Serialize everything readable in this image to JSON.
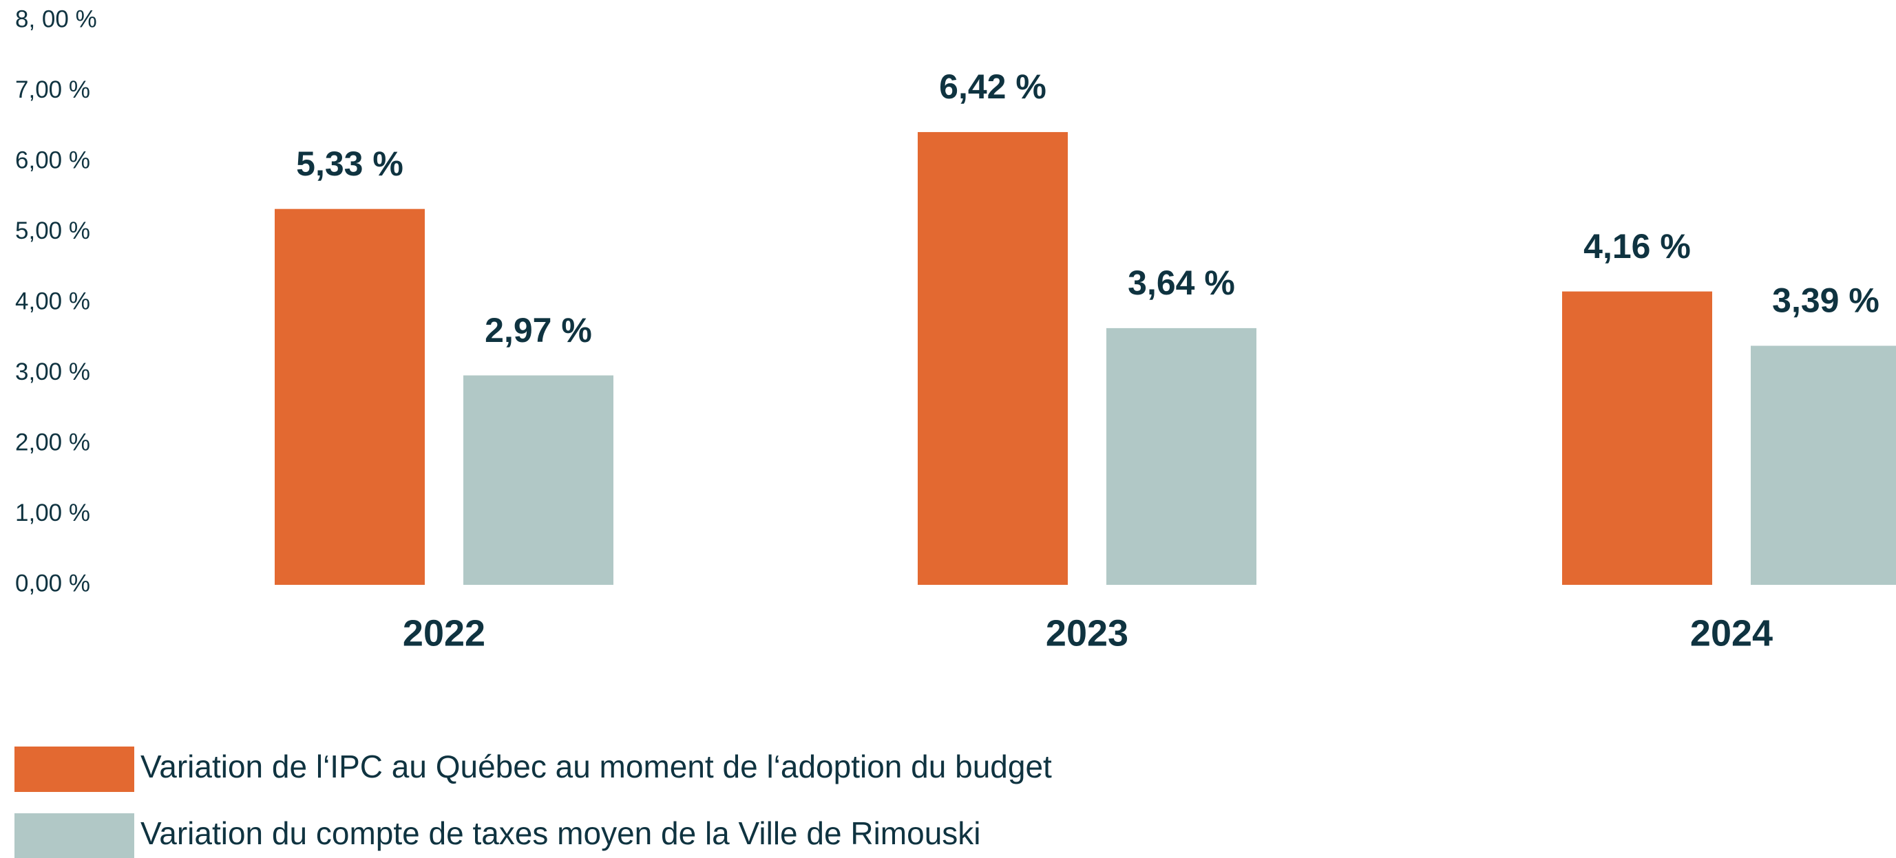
{
  "chart_data": {
    "type": "bar",
    "categories": [
      "2022",
      "2023",
      "2024"
    ],
    "series": [
      {
        "name": "Variation de l‘IPC au Québec au moment de l‘adoption du budget",
        "color": "#e36931",
        "values": [
          5.33,
          6.42,
          4.16
        ],
        "value_labels": [
          "5,33 %",
          "6,42 %",
          "4,16 %"
        ]
      },
      {
        "name": "Variation du compte de taxes moyen de la Ville de Rimouski",
        "color": "#b1c8c6",
        "values": [
          2.97,
          3.64,
          3.39
        ],
        "value_labels": [
          "2,97 %",
          "3,64 %",
          "3,39 %"
        ]
      }
    ],
    "ylim": [
      0,
      8
    ],
    "yticks": [
      {
        "value": 0,
        "label": "0,00 %"
      },
      {
        "value": 1,
        "label": "1,00 %"
      },
      {
        "value": 2,
        "label": "2,00 %"
      },
      {
        "value": 3,
        "label": "3,00 %"
      },
      {
        "value": 4,
        "label": "4,00 %"
      },
      {
        "value": 5,
        "label": "5,00 %"
      },
      {
        "value": 6,
        "label": "6,00 %"
      },
      {
        "value": 7,
        "label": "7,00 %"
      },
      {
        "value": 8,
        "label": "8, 00 %"
      }
    ],
    "grid": false,
    "legend": "bottom-left"
  }
}
